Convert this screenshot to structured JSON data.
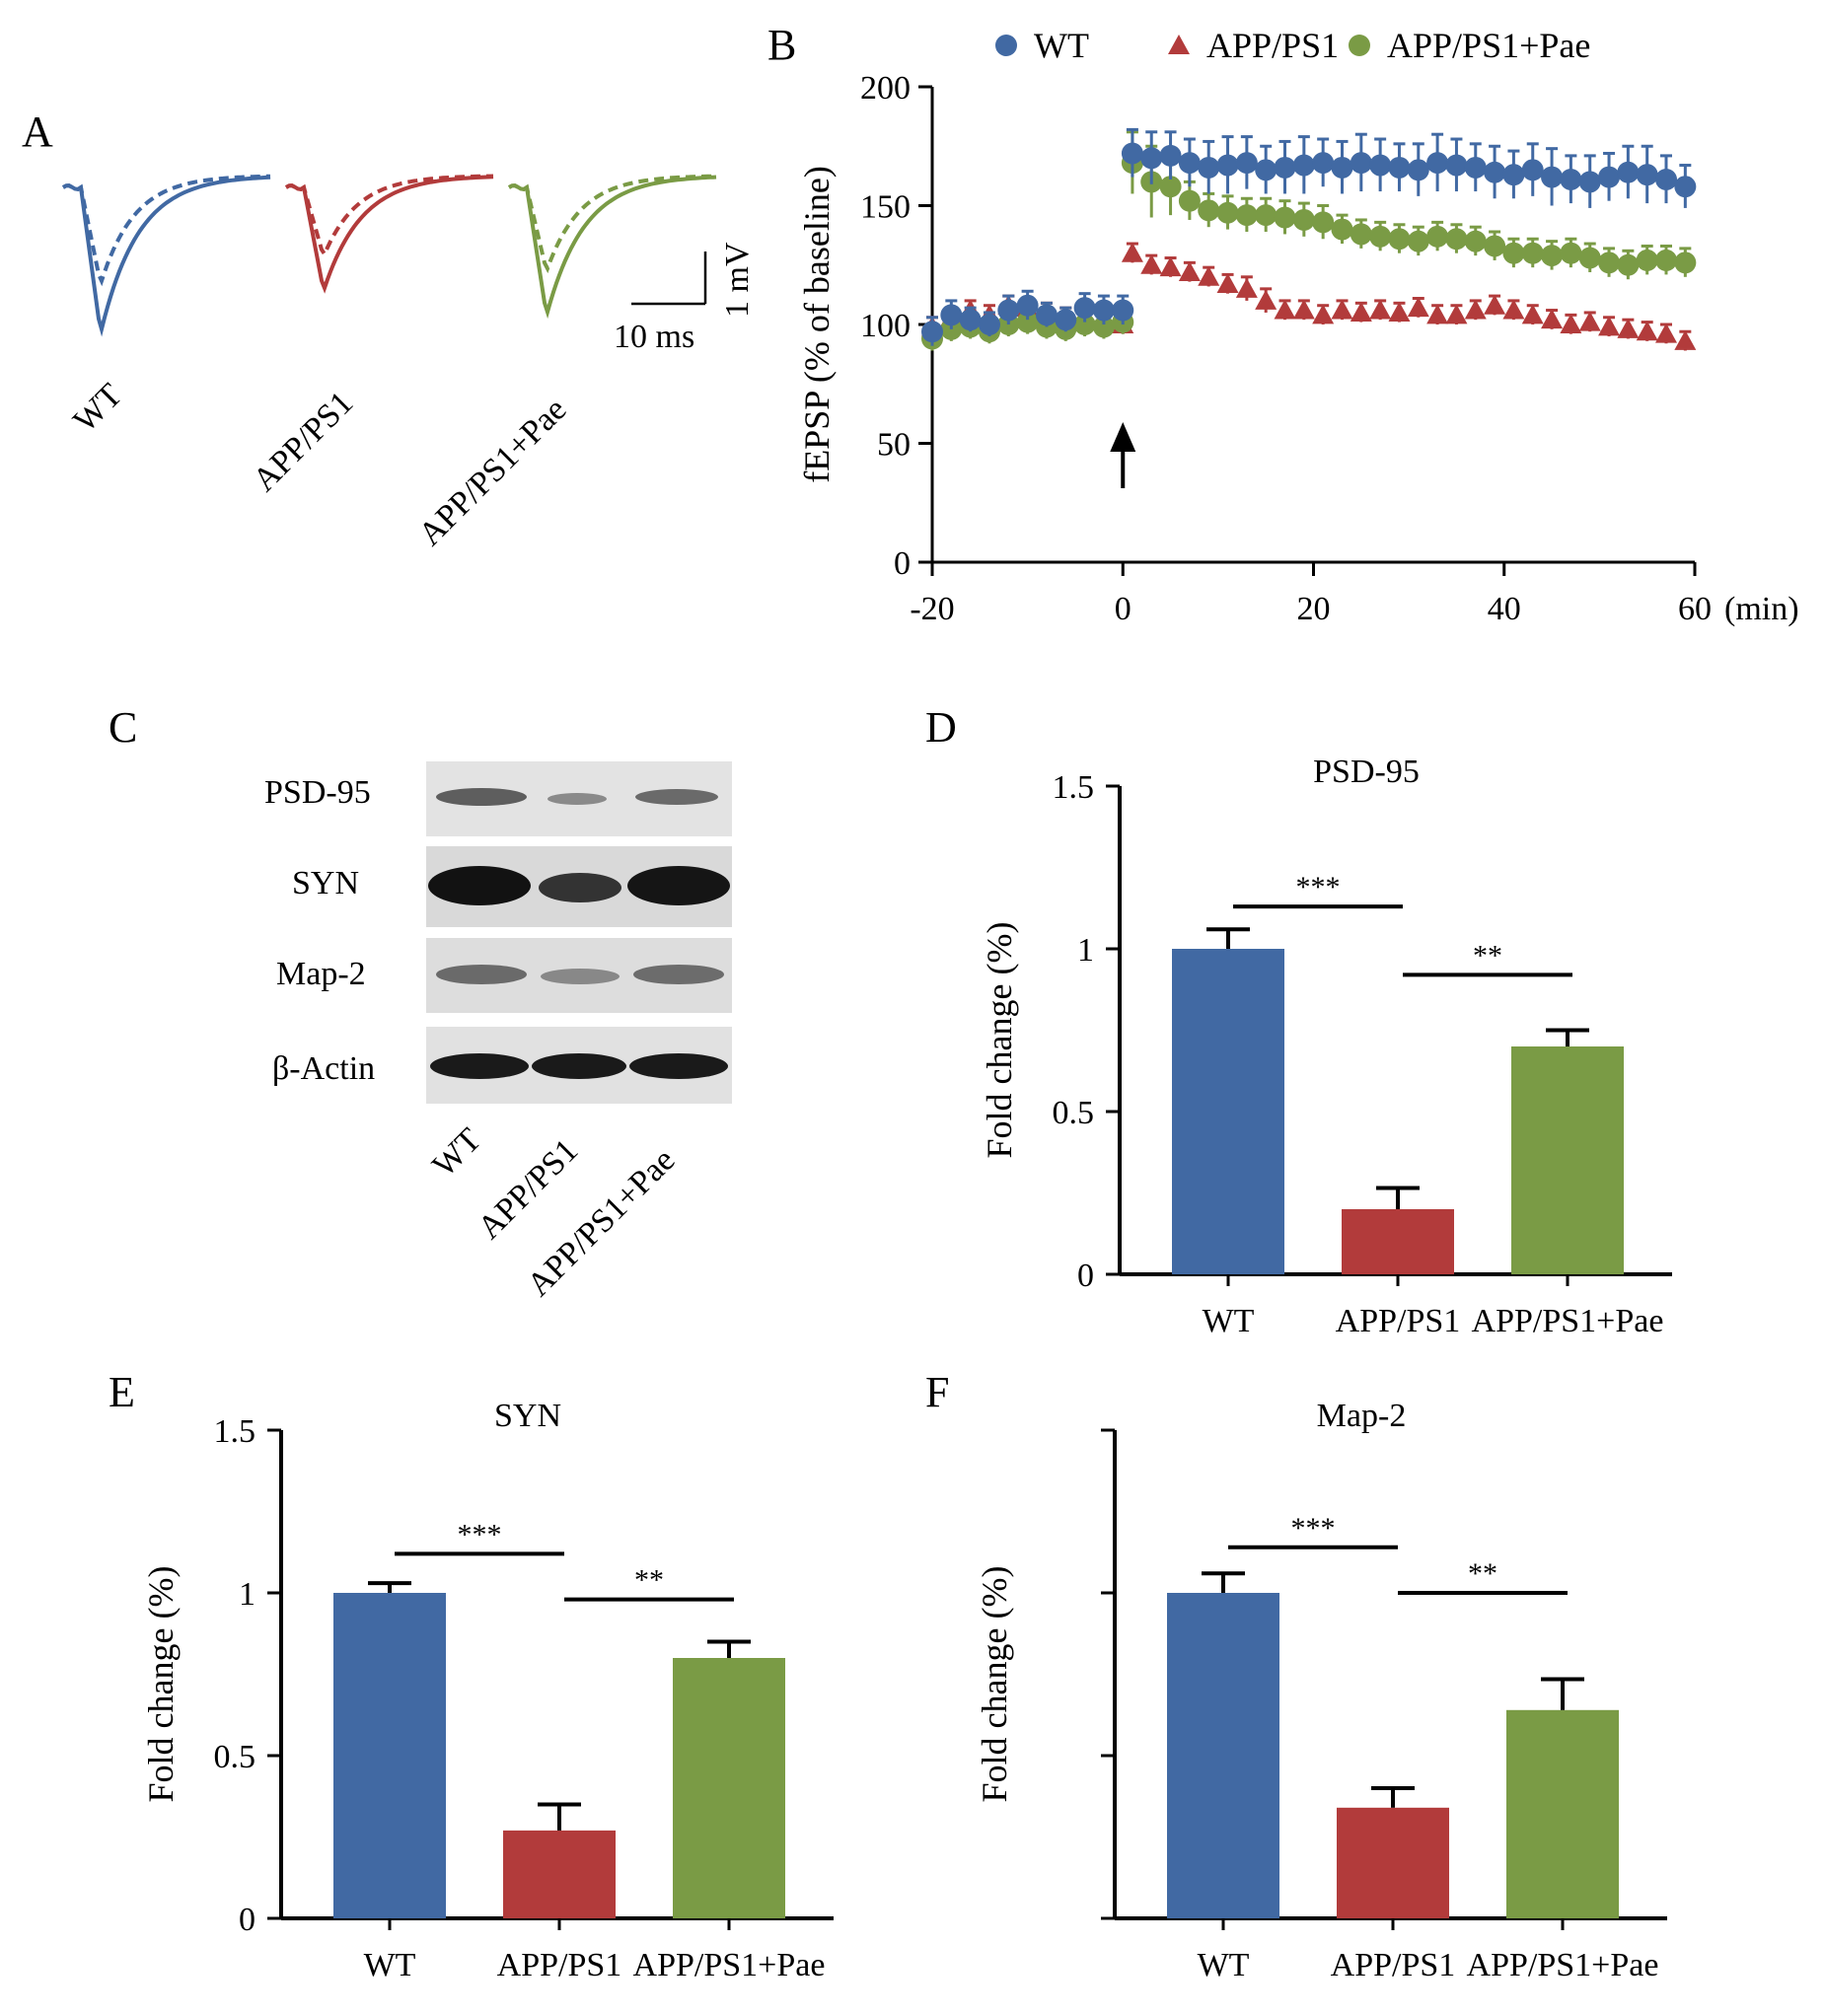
{
  "panels": {
    "A": {
      "label": "A",
      "traces": [
        {
          "name": "WT",
          "color": "#4169a3"
        },
        {
          "name": "APP/PS1",
          "color": "#b23b3b"
        },
        {
          "name": "APP/PS1+Pae",
          "color": "#7a9b45"
        }
      ],
      "scalebar": {
        "time": "10 ms",
        "voltage": "1 mV"
      }
    },
    "B": {
      "label": "B"
    },
    "C": {
      "label": "C",
      "rows": [
        "PSD-95",
        "SYN",
        "Map-2",
        "β-Actin"
      ],
      "lanes": [
        "WT",
        "APP/PS1",
        "APP/PS1+Pae"
      ]
    },
    "D": {
      "label": "D"
    },
    "E": {
      "label": "E"
    },
    "F": {
      "label": "F"
    }
  },
  "colors": {
    "wt": "#4169a3",
    "app": "#b23b3b",
    "pae": "#7a9b45"
  },
  "chart_data": [
    {
      "panel": "B",
      "type": "scatter",
      "xlabel": "",
      "x_unit": "(min)",
      "ylabel": "fEPSP (% of baseline)",
      "xlim": [
        -20,
        60
      ],
      "ylim": [
        0,
        200
      ],
      "xticks": [
        "-20",
        "0",
        "20",
        "40",
        "60"
      ],
      "yticks": [
        "0",
        "50",
        "100",
        "150",
        "200"
      ],
      "legend": [
        "WT",
        "APP/PS1",
        "APP/PS1+Pae"
      ],
      "legend_position": "top",
      "stimulus_arrow_x": 0,
      "series": [
        {
          "name": "WT",
          "marker": "circle",
          "color": "#4169a3",
          "x": [
            -20,
            -18,
            -16,
            -14,
            -12,
            -10,
            -8,
            -6,
            -4,
            -2,
            0,
            1,
            3,
            5,
            7,
            9,
            11,
            13,
            15,
            17,
            19,
            21,
            23,
            25,
            27,
            29,
            31,
            33,
            35,
            37,
            39,
            41,
            43,
            45,
            47,
            49,
            51,
            53,
            55,
            57,
            59
          ],
          "y": [
            97,
            104,
            102,
            100,
            106,
            108,
            104,
            102,
            107,
            106,
            106,
            172,
            170,
            171,
            168,
            166,
            167,
            168,
            165,
            166,
            167,
            168,
            166,
            168,
            167,
            166,
            165,
            168,
            167,
            166,
            164,
            163,
            165,
            162,
            161,
            160,
            162,
            164,
            163,
            161,
            158
          ],
          "err": [
            6,
            6,
            5,
            5,
            6,
            6,
            5,
            5,
            6,
            6,
            6,
            10,
            11,
            10,
            10,
            11,
            12,
            11,
            10,
            11,
            12,
            10,
            11,
            12,
            11,
            10,
            11,
            12,
            11,
            10,
            11,
            10,
            11,
            12,
            10,
            11,
            10,
            11,
            12,
            10,
            9
          ]
        },
        {
          "name": "APP/PS1",
          "marker": "triangle",
          "color": "#b23b3b",
          "x": [
            -20,
            -18,
            -16,
            -14,
            -12,
            -10,
            -8,
            -6,
            -4,
            -2,
            0,
            1,
            3,
            5,
            7,
            9,
            11,
            13,
            15,
            17,
            19,
            21,
            23,
            25,
            27,
            29,
            31,
            33,
            35,
            37,
            39,
            41,
            43,
            45,
            47,
            49,
            51,
            53,
            55,
            57,
            59
          ],
          "y": [
            99,
            103,
            106,
            104,
            108,
            107,
            105,
            103,
            104,
            102,
            100,
            130,
            125,
            124,
            122,
            120,
            117,
            115,
            110,
            106,
            106,
            104,
            106,
            105,
            106,
            105,
            107,
            104,
            104,
            106,
            108,
            106,
            104,
            102,
            100,
            101,
            99,
            98,
            97,
            96,
            93
          ],
          "err": [
            4,
            4,
            4,
            4,
            4,
            4,
            4,
            4,
            4,
            4,
            4,
            4,
            4,
            4,
            4,
            4,
            4,
            5,
            5,
            4,
            4,
            4,
            4,
            4,
            4,
            4,
            4,
            4,
            4,
            4,
            4,
            4,
            4,
            4,
            4,
            4,
            4,
            4,
            4,
            4,
            4
          ]
        },
        {
          "name": "APP/PS1+Pae",
          "marker": "circle",
          "color": "#7a9b45",
          "x": [
            -20,
            -18,
            -16,
            -14,
            -12,
            -10,
            -8,
            -6,
            -4,
            -2,
            0,
            1,
            3,
            5,
            7,
            9,
            11,
            13,
            15,
            17,
            19,
            21,
            23,
            25,
            27,
            29,
            31,
            33,
            35,
            37,
            39,
            41,
            43,
            45,
            47,
            49,
            51,
            53,
            55,
            57,
            59
          ],
          "y": [
            94,
            98,
            99,
            97,
            100,
            101,
            99,
            98,
            100,
            99,
            101,
            168,
            160,
            158,
            152,
            148,
            147,
            146,
            146,
            145,
            144,
            143,
            140,
            138,
            137,
            136,
            135,
            137,
            136,
            135,
            133,
            130,
            130,
            129,
            130,
            128,
            126,
            125,
            127,
            127,
            126
          ],
          "err": [
            5,
            5,
            5,
            5,
            5,
            5,
            5,
            5,
            5,
            5,
            5,
            13,
            15,
            12,
            8,
            7,
            7,
            7,
            7,
            7,
            7,
            7,
            6,
            6,
            6,
            6,
            6,
            6,
            6,
            6,
            6,
            6,
            6,
            6,
            6,
            6,
            6,
            6,
            6,
            6,
            6
          ]
        }
      ]
    },
    {
      "panel": "D",
      "type": "bar",
      "title": "PSD-95",
      "ylabel": "Fold change (%)",
      "ylim": [
        0,
        1.5
      ],
      "yticks": [
        "0",
        "0.5",
        "1",
        "1.5"
      ],
      "categories": [
        "WT",
        "APP/PS1",
        "APP/PS1+Pae"
      ],
      "values": [
        1.0,
        0.2,
        0.7
      ],
      "errors": [
        0.06,
        0.065,
        0.05
      ],
      "significance": [
        {
          "from": 0,
          "to": 1,
          "label": "***",
          "y": 1.13
        },
        {
          "from": 1,
          "to": 2,
          "label": "**",
          "y": 0.92
        }
      ]
    },
    {
      "panel": "E",
      "type": "bar",
      "title": "SYN",
      "ylabel": "Fold change (%)",
      "ylim": [
        0,
        1.5
      ],
      "yticks": [
        "0",
        "0.5",
        "1",
        "1.5"
      ],
      "categories": [
        "WT",
        "APP/PS1",
        "APP/PS1+Pae"
      ],
      "values": [
        1.0,
        0.27,
        0.8
      ],
      "errors": [
        0.03,
        0.08,
        0.05
      ],
      "significance": [
        {
          "from": 0,
          "to": 1,
          "label": "***",
          "y": 1.12
        },
        {
          "from": 1,
          "to": 2,
          "label": "**",
          "y": 0.98
        }
      ]
    },
    {
      "panel": "F",
      "type": "bar",
      "title": "Map-2",
      "ylabel": "Fold change (%)",
      "ylim": [
        0,
        1.5
      ],
      "yticks": [
        "",
        "",
        "",
        ""
      ],
      "categories": [
        "WT",
        "APP/PS1",
        "APP/PS1+Pae"
      ],
      "values": [
        1.0,
        0.34,
        0.64
      ],
      "errors": [
        0.06,
        0.06,
        0.095
      ],
      "significance": [
        {
          "from": 0,
          "to": 1,
          "label": "***",
          "y": 1.14
        },
        {
          "from": 1,
          "to": 2,
          "label": "**",
          "y": 1.0
        }
      ]
    }
  ]
}
